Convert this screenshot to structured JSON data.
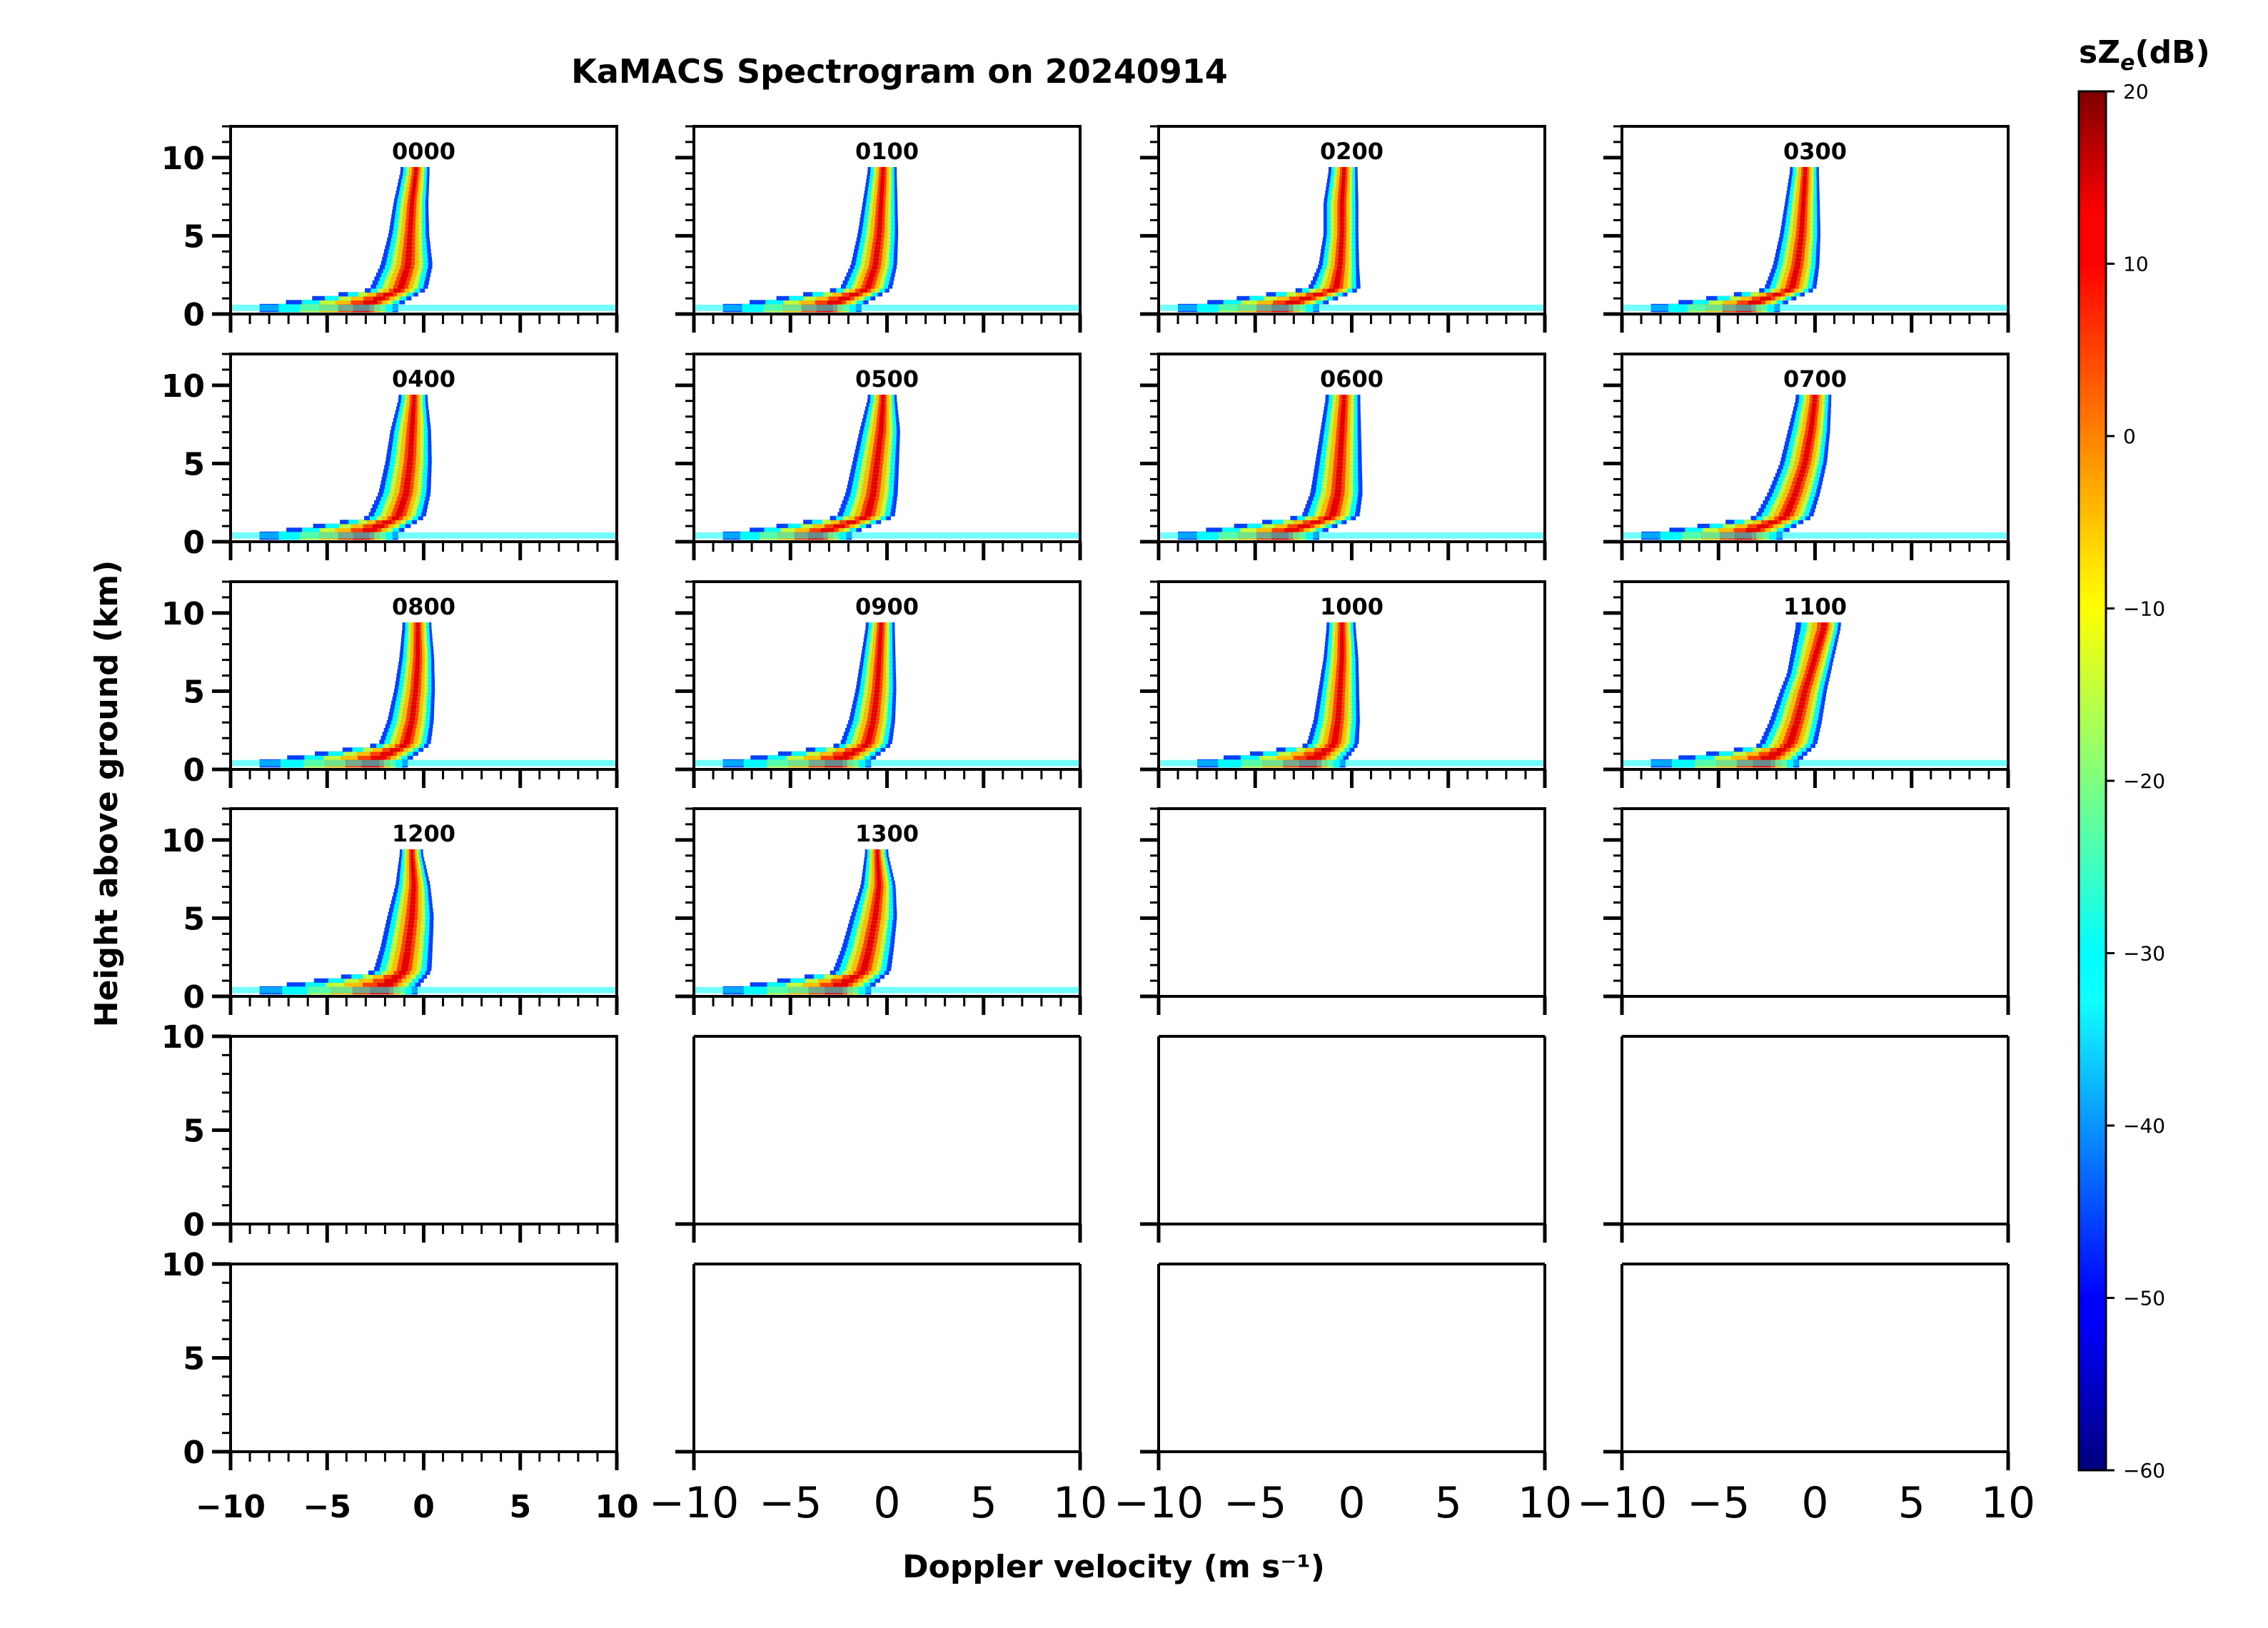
{
  "chart_data": {
    "type": "heatmap",
    "title": "KaMACS Spectrogram on 20240914",
    "xlabel": "Doppler velocity (m s⁻¹)",
    "ylabel": "Height above ground (km)",
    "xlim": [
      -10,
      10
    ],
    "ylim": [
      0,
      12
    ],
    "x_ticks": [
      -10,
      -5,
      0,
      5,
      10
    ],
    "x_tick_labels": [
      "−10",
      "−5",
      "0",
      "5",
      "10"
    ],
    "y_ticks_labeled_rows_0_3": [
      0,
      5,
      10
    ],
    "y_ticks_labeled_rows_4_5": [
      0,
      5,
      10
    ],
    "grid": false,
    "layout": {
      "rows": 6,
      "cols": 4
    },
    "panels": [
      {
        "label": "0000",
        "profile": [
          [
            0.4,
            -3.0,
            1.2,
            -8.5
          ],
          [
            1.5,
            -1.2,
            1.0,
            -2.5
          ],
          [
            3,
            -0.8,
            0.9,
            -2.0
          ],
          [
            5,
            -0.7,
            0.7,
            -1.6
          ],
          [
            7,
            -0.6,
            0.6,
            -1.3
          ],
          [
            9,
            -0.4,
            0.5,
            -1.0
          ]
        ]
      },
      {
        "label": "0100",
        "profile": [
          [
            0.4,
            -3.0,
            1.2,
            -8.5
          ],
          [
            1.5,
            -1.0,
            0.9,
            -2.4
          ],
          [
            3,
            -0.6,
            0.8,
            -1.8
          ],
          [
            5,
            -0.4,
            0.7,
            -1.5
          ],
          [
            7,
            -0.3,
            0.6,
            -1.2
          ],
          [
            9,
            -0.2,
            0.5,
            -1.0
          ]
        ]
      },
      {
        "label": "0200",
        "profile": [
          [
            0.4,
            -3.5,
            1.3,
            -9.0
          ],
          [
            1.5,
            -0.8,
            0.9,
            -2.3
          ],
          [
            3,
            -0.6,
            0.7,
            -1.6
          ],
          [
            5,
            -0.5,
            0.6,
            -1.4
          ],
          [
            7,
            -0.5,
            0.6,
            -1.2
          ],
          [
            9,
            -0.4,
            0.5,
            -1.0
          ]
        ]
      },
      {
        "label": "0300",
        "profile": [
          [
            0.4,
            -3.5,
            1.2,
            -8.5
          ],
          [
            1.5,
            -1.2,
            0.9,
            -2.2
          ],
          [
            3,
            -0.9,
            0.8,
            -1.7
          ],
          [
            5,
            -0.7,
            0.7,
            -1.5
          ],
          [
            7,
            -0.6,
            0.6,
            -1.3
          ],
          [
            9,
            -0.5,
            0.5,
            -1.0
          ]
        ]
      },
      {
        "label": "0400",
        "profile": [
          [
            0.4,
            -3.0,
            1.2,
            -8.5
          ],
          [
            1.5,
            -1.3,
            1.0,
            -2.4
          ],
          [
            3,
            -0.9,
            0.9,
            -2.0
          ],
          [
            5,
            -0.7,
            0.8,
            -1.7
          ],
          [
            7,
            -0.6,
            0.7,
            -1.4
          ],
          [
            9,
            -0.5,
            0.5,
            -1.0
          ]
        ]
      },
      {
        "label": "0500",
        "profile": [
          [
            0.4,
            -3.5,
            1.2,
            -8.5
          ],
          [
            1.5,
            -1.0,
            1.0,
            -2.4
          ],
          [
            3,
            -0.7,
            0.9,
            -2.0
          ],
          [
            5,
            -0.5,
            0.8,
            -1.7
          ],
          [
            7,
            -0.3,
            0.7,
            -1.4
          ],
          [
            9,
            -0.2,
            0.5,
            -1.0
          ]
        ]
      },
      {
        "label": "0600",
        "profile": [
          [
            0.4,
            -3.5,
            1.3,
            -9.0
          ],
          [
            1.5,
            -1.0,
            1.0,
            -2.6
          ],
          [
            3,
            -0.7,
            0.9,
            -2.0
          ],
          [
            5,
            -0.6,
            0.8,
            -1.7
          ],
          [
            7,
            -0.5,
            0.7,
            -1.4
          ],
          [
            9,
            -0.4,
            0.6,
            -1.1
          ]
        ]
      },
      {
        "label": "0700",
        "profile": [
          [
            0.4,
            -3.5,
            1.3,
            -9.0
          ],
          [
            1.5,
            -1.5,
            1.0,
            -2.6
          ],
          [
            3,
            -1.0,
            0.9,
            -2.2
          ],
          [
            5,
            -0.5,
            0.8,
            -1.8
          ],
          [
            7,
            -0.2,
            0.7,
            -1.4
          ],
          [
            9,
            0.0,
            0.6,
            -1.0
          ]
        ]
      },
      {
        "label": "0800",
        "profile": [
          [
            0.4,
            -2.5,
            1.2,
            -8.5
          ],
          [
            1.5,
            -0.9,
            0.9,
            -2.2
          ],
          [
            3,
            -0.6,
            0.8,
            -1.8
          ],
          [
            5,
            -0.4,
            0.7,
            -1.5
          ],
          [
            7,
            -0.3,
            0.6,
            -1.2
          ],
          [
            9,
            -0.3,
            0.5,
            -1.0
          ]
        ]
      },
      {
        "label": "0900",
        "profile": [
          [
            0.4,
            -2.5,
            1.2,
            -8.5
          ],
          [
            1.5,
            -1.0,
            0.9,
            -2.2
          ],
          [
            3,
            -0.7,
            0.8,
            -1.8
          ],
          [
            5,
            -0.5,
            0.7,
            -1.5
          ],
          [
            7,
            -0.4,
            0.6,
            -1.2
          ],
          [
            9,
            -0.3,
            0.5,
            -1.0
          ]
        ]
      },
      {
        "label": "1000",
        "profile": [
          [
            0.4,
            -2.0,
            1.2,
            -8.0
          ],
          [
            1.5,
            -0.9,
            0.9,
            -2.0
          ],
          [
            3,
            -0.7,
            0.8,
            -1.6
          ],
          [
            5,
            -0.6,
            0.7,
            -1.4
          ],
          [
            7,
            -0.5,
            0.6,
            -1.2
          ],
          [
            9,
            -0.5,
            0.5,
            -0.9
          ]
        ]
      },
      {
        "label": "1100",
        "profile": [
          [
            0.4,
            -2.5,
            1.2,
            -8.5
          ],
          [
            1.5,
            -1.3,
            1.0,
            -2.2
          ],
          [
            3,
            -0.9,
            0.9,
            -1.9
          ],
          [
            5,
            -0.5,
            0.8,
            -1.6
          ],
          [
            7,
            0.0,
            0.7,
            -1.3
          ],
          [
            9,
            0.5,
            0.6,
            -1.0
          ]
        ]
      },
      {
        "label": "1200",
        "profile": [
          [
            0.4,
            -2.0,
            1.2,
            -8.5
          ],
          [
            1.5,
            -1.0,
            1.0,
            -2.3
          ],
          [
            3,
            -0.8,
            0.9,
            -1.9
          ],
          [
            5,
            -0.6,
            0.8,
            -1.6
          ],
          [
            7,
            -0.5,
            0.6,
            -1.3
          ],
          [
            9,
            -0.6,
            0.4,
            -1.0
          ]
        ]
      },
      {
        "label": "1300",
        "profile": [
          [
            0.4,
            -2.5,
            1.2,
            -8.5
          ],
          [
            1.5,
            -1.2,
            1.0,
            -2.3
          ],
          [
            3,
            -0.9,
            0.9,
            -1.9
          ],
          [
            5,
            -0.6,
            0.8,
            -1.6
          ],
          [
            7,
            -0.4,
            0.6,
            -1.3
          ],
          [
            9,
            -0.5,
            0.4,
            -1.0
          ]
        ]
      }
    ],
    "colorbar": {
      "label": "sZ",
      "label_subscript": "e",
      "label_unit": "(dB)",
      "range": [
        -60,
        20
      ],
      "ticks": [
        20,
        10,
        0,
        -10,
        -20,
        -30,
        -40,
        -50,
        -60
      ],
      "tick_labels": [
        "20",
        "10",
        "0",
        "−10",
        "−20",
        "−30",
        "−40",
        "−50",
        "−60"
      ],
      "colormap": "jet"
    }
  }
}
